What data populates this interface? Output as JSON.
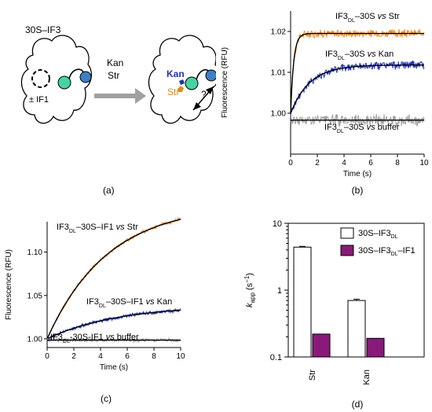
{
  "panels": {
    "a": {
      "letter": "(a)"
    },
    "b": {
      "letter": "(b)"
    },
    "c": {
      "letter": "(c)"
    },
    "d": {
      "letter": "(d)"
    }
  },
  "schematic": {
    "complex_label": "30S–IF3",
    "if1_label": "± IF1",
    "arrow_top": "Kan",
    "arrow_bottom": "Str",
    "bound_kan": "Kan",
    "bound_str": "Str",
    "question": "?",
    "colors": {
      "kan": "#2233aa",
      "str": "#e08a1e",
      "domain_green": "#46d3a0",
      "domain_blue": "#3f7fc4",
      "arrow_gray": "#a0a0a0"
    }
  },
  "chart_data": [
    {
      "id": "b",
      "type": "line",
      "xlabel": "Time (s)",
      "ylabel": "Fluorescence  (RFU)",
      "xlim": [
        0,
        10
      ],
      "ylim": [
        0.99,
        1.025
      ],
      "xticks": [
        0,
        2,
        4,
        6,
        8,
        10
      ],
      "yticks": [
        1.0,
        1.01,
        1.02
      ],
      "ytick_labels": [
        "1.00",
        "1.01",
        "1.02"
      ],
      "series": [
        {
          "label": {
            "pre": "IF3",
            "sub": "DL",
            "post": "–30S ",
            "vs": "vs",
            "end": " Str"
          },
          "color": "#f08a24",
          "baseline": 1.0,
          "plateau": 1.0195,
          "k": 4.4,
          "noise": 0.0006
        },
        {
          "label": {
            "pre": "IF3",
            "sub": "DL",
            "post": "–30S ",
            "vs": "vs",
            "end": " Kan"
          },
          "color": "#2233bb",
          "baseline": 1.0,
          "plateau": 1.0118,
          "k": 0.7,
          "noise": 0.0006
        },
        {
          "label": {
            "pre": "IF3",
            "sub": "DL",
            "post": "–30S ",
            "vs": "vs",
            "end": " buffer"
          },
          "color": "#a0a0a0",
          "baseline": 0.9983,
          "plateau": 0.9983,
          "k": 0,
          "noise": 0.0008
        }
      ]
    },
    {
      "id": "c",
      "type": "line",
      "xlabel": "Time (s)",
      "ylabel": "Fluorescence  (RFU)",
      "xlim": [
        0,
        10
      ],
      "ylim": [
        0.99,
        1.135
      ],
      "xticks": [
        0,
        2,
        4,
        6,
        8,
        10
      ],
      "yticks": [
        1.0,
        1.05,
        1.1
      ],
      "ytick_labels": [
        "1.00",
        "1.05",
        "1.10"
      ],
      "series": [
        {
          "label": {
            "pre": "IF3",
            "sub": "DL",
            "post": "–30S–IF1 ",
            "vs": "vs",
            "end": " Str"
          },
          "color": "#f08a24",
          "baseline": 1.0,
          "plateau": 1.155,
          "k": 0.22,
          "noise": 0.0012
        },
        {
          "label": {
            "pre": "IF3",
            "sub": "DL",
            "post": "–30S–IF1 ",
            "vs": "vs",
            "end": " Kan"
          },
          "color": "#2233bb",
          "baseline": 1.0,
          "plateau": 1.039,
          "k": 0.19,
          "noise": 0.0012
        },
        {
          "label": {
            "pre": "IF3",
            "sub": "DL",
            "post": "-30S-IF1 ",
            "vs": "vs",
            "end": " buffer"
          },
          "color": "#a0a0a0",
          "baseline": 0.9985,
          "plateau": 0.9985,
          "k": 0,
          "noise": 0.0012
        }
      ]
    },
    {
      "id": "d",
      "type": "bar",
      "ylabel": {
        "k": "k",
        "sub": "app",
        "unit": " (s",
        "sup": "−1",
        "close": ")"
      },
      "yscale": "log",
      "ylim": [
        0.1,
        10
      ],
      "yticks": [
        0.1,
        1,
        10
      ],
      "ytick_labels": [
        "0.1",
        "1",
        "10"
      ],
      "categories": [
        "Str",
        "Kan"
      ],
      "series": [
        {
          "label": {
            "pre": "30S–IF3",
            "sub": "DL",
            "post": ""
          },
          "fill": "#ffffff",
          "values": [
            4.4,
            0.7
          ],
          "errors": [
            0.12,
            0.03
          ]
        },
        {
          "label": {
            "pre": "30S–IF3",
            "sub": "DL",
            "post": "–IF1"
          },
          "fill": "#8a1a7a",
          "values": [
            0.22,
            0.19
          ],
          "errors": [
            0,
            0
          ]
        }
      ]
    }
  ]
}
